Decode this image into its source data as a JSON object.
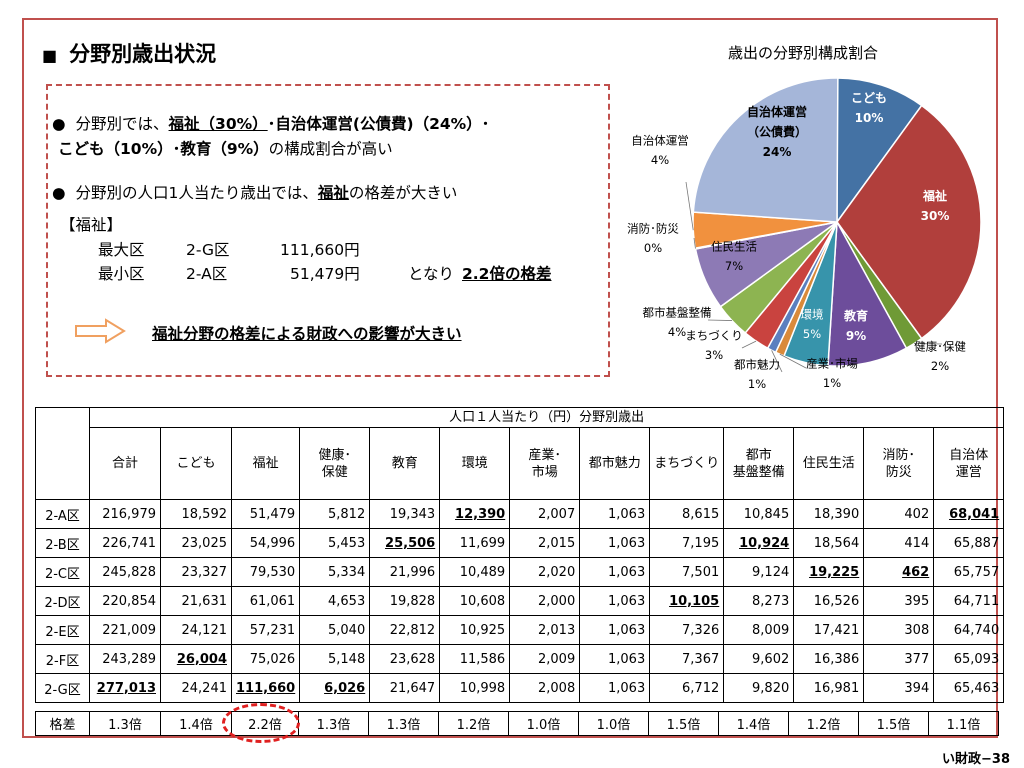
{
  "header": {
    "title_marker": "■",
    "title": "分野別歳出状況",
    "pie_title": "歳出の分野別構成割合"
  },
  "summary": {
    "bullet": "●",
    "line1_prefix": "分野別では、",
    "line1_fukushi": "福祉（30%）",
    "line1_rest": "･自治体運営(公債費)（24%）･",
    "line2_bold": "こども（10%）･教育（9%）",
    "line2_rest": "の構成割合が高い",
    "line3_prefix": "分野別の人口1人当たり歳出では、",
    "line3_emph": "福祉",
    "line3_rest": "の格差が大きい",
    "bracket_label": "【福祉】",
    "max_label": "最大区",
    "max_ward": "2-G区",
    "max_value": "111,660円",
    "min_label": "最小区",
    "min_ward": "2-A区",
    "min_value": "51,479円",
    "result_prefix": "となり",
    "result_emph": "2.2倍の格差",
    "conclusion": "福祉分野の格差による財政への影響が大きい"
  },
  "pie": {
    "slices": [
      {
        "name": "こども",
        "pct": 10,
        "color": "#4472a4",
        "label_text": "こども",
        "value_text": "10%"
      },
      {
        "name": "福祉",
        "pct": 30,
        "color": "#b13f3c",
        "label_text": "福祉",
        "value_text": "30%"
      },
      {
        "name": "健康･保健",
        "pct": 2,
        "color": "#6f9a36",
        "label_text": "健康･保健",
        "value_text": "2%"
      },
      {
        "name": "教育",
        "pct": 9,
        "color": "#6d4d9b",
        "label_text": "教育",
        "value_text": "9%"
      },
      {
        "name": "環境",
        "pct": 5,
        "color": "#3794ab",
        "label_text": "環境",
        "value_text": "5%"
      },
      {
        "name": "産業･市場",
        "pct": 1,
        "color": "#d98a3a",
        "label_text": "産業･市場",
        "value_text": "1%"
      },
      {
        "name": "都市魅力",
        "pct": 1,
        "color": "#5b7fbf",
        "label_text": "都市魅力",
        "value_text": "1%"
      },
      {
        "name": "まちづくり",
        "pct": 3,
        "color": "#c9433f",
        "label_text": "まちづくり",
        "value_text": "3%"
      },
      {
        "name": "都市基盤整備",
        "pct": 4,
        "color": "#8db451",
        "label_text": "都市基盤整備",
        "value_text": "4%"
      },
      {
        "name": "住民生活",
        "pct": 7,
        "color": "#8d7ab5",
        "label_text": "住民生活",
        "value_text": "7%"
      },
      {
        "name": "消防･防災",
        "pct": 0,
        "color": "#45b1c8",
        "label_text": "消防･防災",
        "value_text": "0%"
      },
      {
        "name": "自治体運営",
        "pct": 4,
        "color": "#f1913e",
        "label_text": "自治体運営",
        "value_text": "4%"
      },
      {
        "name": "自治体運営(公債費)",
        "pct": 24,
        "color": "#a5b6d9",
        "label_text": "自治体運営",
        "label_text2": "（公債費）",
        "value_text": "24%"
      }
    ]
  },
  "table": {
    "group_header": "人口１人当たり（円）分野別歳出",
    "columns": [
      "合計",
      "こども",
      "福祉",
      "健康･\n保健",
      "教育",
      "環境",
      "産業･\n市場",
      "都市魅力",
      "まちづくり",
      "都市\n基盤整備",
      "住民生活",
      "消防･\n防災",
      "自治体\n運営"
    ],
    "rows": [
      {
        "ward": "2-A区",
        "values": [
          "216,979",
          "18,592",
          "51,479",
          "5,812",
          "19,343",
          "12,390",
          "2,007",
          "1,063",
          "8,615",
          "10,845",
          "18,390",
          "402",
          "68,041"
        ]
      },
      {
        "ward": "2-B区",
        "values": [
          "226,741",
          "23,025",
          "54,996",
          "5,453",
          "25,506",
          "11,699",
          "2,015",
          "1,063",
          "7,195",
          "10,924",
          "18,564",
          "414",
          "65,887"
        ]
      },
      {
        "ward": "2-C区",
        "values": [
          "245,828",
          "23,327",
          "79,530",
          "5,334",
          "21,996",
          "10,489",
          "2,020",
          "1,063",
          "7,501",
          "9,124",
          "19,225",
          "462",
          "65,757"
        ]
      },
      {
        "ward": "2-D区",
        "values": [
          "220,854",
          "21,631",
          "61,061",
          "4,653",
          "19,828",
          "10,608",
          "2,000",
          "1,063",
          "10,105",
          "8,273",
          "16,526",
          "395",
          "64,711"
        ]
      },
      {
        "ward": "2-E区",
        "values": [
          "221,009",
          "24,121",
          "57,231",
          "5,040",
          "22,812",
          "10,925",
          "2,013",
          "1,063",
          "7,326",
          "8,009",
          "17,421",
          "308",
          "64,740"
        ]
      },
      {
        "ward": "2-F区",
        "values": [
          "243,289",
          "26,004",
          "75,026",
          "5,148",
          "23,628",
          "11,586",
          "2,009",
          "1,063",
          "7,367",
          "9,602",
          "16,386",
          "377",
          "65,093"
        ]
      },
      {
        "ward": "2-G区",
        "values": [
          "277,013",
          "24,241",
          "111,660",
          "6,026",
          "21,647",
          "10,998",
          "2,008",
          "1,063",
          "6,712",
          "9,820",
          "16,981",
          "394",
          "65,463"
        ]
      }
    ],
    "ratio_label": "格差",
    "ratios": [
      "1.3倍",
      "1.4倍",
      "2.2倍",
      "1.3倍",
      "1.3倍",
      "1.2倍",
      "1.0倍",
      "1.0倍",
      "1.5倍",
      "1.4倍",
      "1.2倍",
      "1.5倍",
      "1.1倍"
    ]
  },
  "footer": {
    "page_number": "い財政−38"
  },
  "colors": {
    "frame": "#c0504d",
    "highlight": "#e02020",
    "arrow": "#f0a060"
  }
}
